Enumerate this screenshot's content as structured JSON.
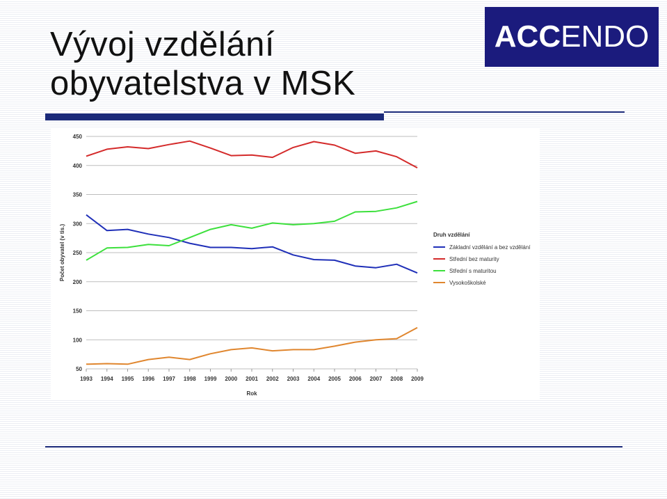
{
  "slide": {
    "title_line1": "Vývoj vzdělání",
    "title_line2": "obyvatelstva v MSK",
    "logo_bold": "ACC",
    "logo_light": "ENDO",
    "logo_bg": "#1b1b7d",
    "rule_color": "#1b2a7a"
  },
  "chart_data": {
    "type": "line",
    "title": "",
    "xlabel": "Rok",
    "ylabel": "Počet obyvatel (v tis.)",
    "ylim": [
      50,
      450
    ],
    "yticks": [
      50,
      100,
      150,
      200,
      250,
      300,
      350,
      400,
      450
    ],
    "grid": true,
    "legend_title": "Druh vzdělání",
    "legend_position": "right",
    "x": [
      1993,
      1994,
      1995,
      1996,
      1997,
      1998,
      1999,
      2000,
      2001,
      2002,
      2003,
      2004,
      2005,
      2006,
      2007,
      2008,
      2009
    ],
    "series": [
      {
        "name": "Základní vzdělání a bez vzdělání",
        "color": "#1f2fb8",
        "values": [
          315,
          288,
          290,
          282,
          276,
          266,
          259,
          259,
          257,
          260,
          246,
          238,
          237,
          227,
          224,
          230,
          215
        ]
      },
      {
        "name": "Střední bez maturity",
        "color": "#d42a2a",
        "values": [
          416,
          428,
          432,
          429,
          436,
          442,
          430,
          417,
          418,
          414,
          431,
          441,
          435,
          421,
          425,
          415,
          396
        ]
      },
      {
        "name": "Střední s maturitou",
        "color": "#3ce03c",
        "values": [
          237,
          258,
          259,
          264,
          262,
          276,
          290,
          298,
          292,
          301,
          298,
          300,
          304,
          320,
          321,
          327,
          338
        ]
      },
      {
        "name": "Vysokoškolské",
        "color": "#e0862e",
        "values": [
          58,
          59,
          58,
          66,
          70,
          66,
          76,
          83,
          86,
          81,
          83,
          83,
          89,
          96,
          100,
          102,
          121
        ]
      }
    ]
  }
}
